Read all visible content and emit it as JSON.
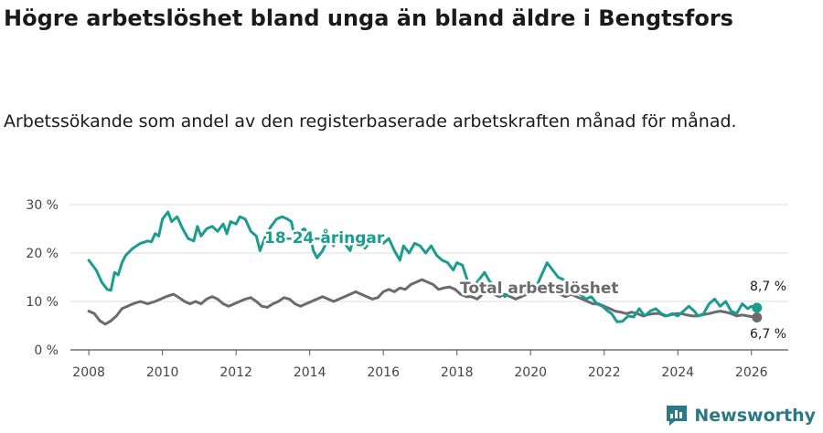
{
  "title": "Högre arbetslöshet bland unga än bland äldre i Bengtsfors",
  "subtitle": "Arbetssökande som andel av den registerbaserade arbetskraften månad för månad.",
  "brand": "Newsworthy",
  "colors": {
    "youth": "#1a9c8f",
    "total": "#6b6b6b",
    "brand": "#2a7a86"
  },
  "chart_data": {
    "type": "line",
    "ylim": [
      0,
      30
    ],
    "xlim": [
      2007.5,
      2027.0
    ],
    "y_ticks": [
      {
        "value": 0,
        "label": "0 %"
      },
      {
        "value": 10,
        "label": "10 %"
      },
      {
        "value": 20,
        "label": "20 %"
      },
      {
        "value": 30,
        "label": "30 %"
      }
    ],
    "x_ticks": [
      {
        "value": 2008,
        "label": "2008"
      },
      {
        "value": 2010,
        "label": "2010"
      },
      {
        "value": 2012,
        "label": "2012"
      },
      {
        "value": 2014,
        "label": "2014"
      },
      {
        "value": 2016,
        "label": "2016"
      },
      {
        "value": 2018,
        "label": "2018"
      },
      {
        "value": 2020,
        "label": "2020"
      },
      {
        "value": 2022,
        "label": "2022"
      },
      {
        "value": 2024,
        "label": "2024"
      },
      {
        "value": 2026,
        "label": "2026"
      }
    ],
    "series": [
      {
        "name": "18-24-åringar",
        "color_key": "youth",
        "end_label": "8,7 %",
        "points": [
          [
            2008.0,
            18.5
          ],
          [
            2008.2,
            16.5
          ],
          [
            2008.35,
            14.0
          ],
          [
            2008.5,
            12.5
          ],
          [
            2008.6,
            12.3
          ],
          [
            2008.7,
            16.0
          ],
          [
            2008.8,
            15.5
          ],
          [
            2008.9,
            18.0
          ],
          [
            2009.0,
            19.5
          ],
          [
            2009.2,
            21.0
          ],
          [
            2009.4,
            22.0
          ],
          [
            2009.6,
            22.5
          ],
          [
            2009.7,
            22.3
          ],
          [
            2009.8,
            24.0
          ],
          [
            2009.9,
            23.5
          ],
          [
            2010.0,
            27.0
          ],
          [
            2010.15,
            28.5
          ],
          [
            2010.25,
            26.5
          ],
          [
            2010.4,
            27.5
          ],
          [
            2010.55,
            25.0
          ],
          [
            2010.7,
            23.0
          ],
          [
            2010.85,
            22.5
          ],
          [
            2010.95,
            25.5
          ],
          [
            2011.05,
            23.5
          ],
          [
            2011.2,
            25.0
          ],
          [
            2011.35,
            25.5
          ],
          [
            2011.5,
            24.5
          ],
          [
            2011.65,
            26.0
          ],
          [
            2011.75,
            24.0
          ],
          [
            2011.85,
            26.5
          ],
          [
            2012.0,
            26.0
          ],
          [
            2012.1,
            27.5
          ],
          [
            2012.25,
            27.0
          ],
          [
            2012.4,
            24.5
          ],
          [
            2012.55,
            23.5
          ],
          [
            2012.65,
            20.5
          ],
          [
            2012.8,
            23.5
          ],
          [
            2012.95,
            25.5
          ],
          [
            2013.1,
            27.0
          ],
          [
            2013.25,
            27.5
          ],
          [
            2013.4,
            27.0
          ],
          [
            2013.5,
            26.5
          ],
          [
            2013.6,
            23.0
          ],
          [
            2013.75,
            24.5
          ],
          [
            2013.85,
            25.0
          ],
          [
            2014.0,
            24.0
          ],
          [
            2014.1,
            20.5
          ],
          [
            2014.2,
            19.0
          ],
          [
            2014.35,
            20.5
          ],
          [
            2014.5,
            23.0
          ],
          [
            2014.65,
            21.5
          ],
          [
            2014.8,
            24.0
          ],
          [
            2014.95,
            22.0
          ],
          [
            2015.1,
            20.5
          ],
          [
            2015.2,
            23.5
          ],
          [
            2015.35,
            23.0
          ],
          [
            2015.5,
            21.0
          ],
          [
            2015.65,
            22.5
          ],
          [
            2015.8,
            23.5
          ],
          [
            2016.0,
            22.0
          ],
          [
            2016.15,
            23.0
          ],
          [
            2016.3,
            20.5
          ],
          [
            2016.45,
            18.5
          ],
          [
            2016.55,
            21.5
          ],
          [
            2016.7,
            20.0
          ],
          [
            2016.85,
            22.0
          ],
          [
            2017.0,
            21.5
          ],
          [
            2017.15,
            20.0
          ],
          [
            2017.3,
            21.5
          ],
          [
            2017.45,
            19.5
          ],
          [
            2017.6,
            18.5
          ],
          [
            2017.75,
            18.0
          ],
          [
            2017.9,
            16.5
          ],
          [
            2018.0,
            18.0
          ],
          [
            2018.15,
            17.5
          ],
          [
            2018.3,
            14.0
          ],
          [
            2018.45,
            13.0
          ],
          [
            2018.6,
            14.5
          ],
          [
            2018.75,
            16.0
          ],
          [
            2018.9,
            14.0
          ],
          [
            2019.0,
            13.5
          ],
          [
            2019.15,
            12.5
          ],
          [
            2019.3,
            11.0
          ],
          [
            2019.45,
            12.0
          ],
          [
            2019.6,
            13.5
          ],
          [
            2019.75,
            12.5
          ],
          [
            2019.9,
            11.5
          ],
          [
            2020.1,
            12.0
          ],
          [
            2020.3,
            15.5
          ],
          [
            2020.45,
            18.0
          ],
          [
            2020.6,
            16.5
          ],
          [
            2020.75,
            15.0
          ],
          [
            2020.9,
            14.5
          ],
          [
            2021.05,
            13.0
          ],
          [
            2021.2,
            12.0
          ],
          [
            2021.35,
            11.5
          ],
          [
            2021.5,
            10.5
          ],
          [
            2021.65,
            11.0
          ],
          [
            2021.8,
            9.5
          ],
          [
            2021.95,
            9.0
          ],
          [
            2022.1,
            8.0
          ],
          [
            2022.2,
            7.5
          ],
          [
            2022.35,
            5.8
          ],
          [
            2022.5,
            5.9
          ],
          [
            2022.65,
            7.0
          ],
          [
            2022.8,
            6.8
          ],
          [
            2022.95,
            8.5
          ],
          [
            2023.1,
            7.0
          ],
          [
            2023.25,
            8.0
          ],
          [
            2023.4,
            8.5
          ],
          [
            2023.55,
            7.5
          ],
          [
            2023.7,
            7.0
          ],
          [
            2023.85,
            7.5
          ],
          [
            2024.0,
            7.0
          ],
          [
            2024.15,
            8.0
          ],
          [
            2024.3,
            9.0
          ],
          [
            2024.45,
            8.0
          ],
          [
            2024.55,
            7.0
          ],
          [
            2024.7,
            7.5
          ],
          [
            2024.85,
            9.5
          ],
          [
            2025.0,
            10.5
          ],
          [
            2025.15,
            9.0
          ],
          [
            2025.3,
            10.0
          ],
          [
            2025.45,
            8.0
          ],
          [
            2025.6,
            7.5
          ],
          [
            2025.75,
            9.5
          ],
          [
            2025.9,
            8.5
          ],
          [
            2026.0,
            9.0
          ],
          [
            2026.15,
            8.7
          ]
        ]
      },
      {
        "name": "Total arbetslöshet",
        "color_key": "total",
        "end_label": "6,7 %",
        "points": [
          [
            2008.0,
            8.0
          ],
          [
            2008.15,
            7.5
          ],
          [
            2008.3,
            6.0
          ],
          [
            2008.45,
            5.3
          ],
          [
            2008.6,
            6.0
          ],
          [
            2008.75,
            7.0
          ],
          [
            2008.9,
            8.5
          ],
          [
            2009.05,
            9.0
          ],
          [
            2009.2,
            9.5
          ],
          [
            2009.4,
            10.0
          ],
          [
            2009.6,
            9.5
          ],
          [
            2009.8,
            10.0
          ],
          [
            2009.95,
            10.5
          ],
          [
            2010.1,
            11.0
          ],
          [
            2010.3,
            11.5
          ],
          [
            2010.45,
            10.8
          ],
          [
            2010.6,
            10.0
          ],
          [
            2010.75,
            9.5
          ],
          [
            2010.9,
            10.0
          ],
          [
            2011.05,
            9.5
          ],
          [
            2011.2,
            10.5
          ],
          [
            2011.35,
            11.0
          ],
          [
            2011.5,
            10.5
          ],
          [
            2011.65,
            9.5
          ],
          [
            2011.8,
            9.0
          ],
          [
            2011.95,
            9.5
          ],
          [
            2012.1,
            10.0
          ],
          [
            2012.25,
            10.5
          ],
          [
            2012.4,
            10.8
          ],
          [
            2012.55,
            10.0
          ],
          [
            2012.7,
            9.0
          ],
          [
            2012.85,
            8.8
          ],
          [
            2013.0,
            9.5
          ],
          [
            2013.15,
            10.0
          ],
          [
            2013.3,
            10.8
          ],
          [
            2013.45,
            10.5
          ],
          [
            2013.6,
            9.5
          ],
          [
            2013.75,
            9.0
          ],
          [
            2013.9,
            9.5
          ],
          [
            2014.05,
            10.0
          ],
          [
            2014.2,
            10.5
          ],
          [
            2014.35,
            11.0
          ],
          [
            2014.5,
            10.5
          ],
          [
            2014.65,
            10.0
          ],
          [
            2014.8,
            10.5
          ],
          [
            2014.95,
            11.0
          ],
          [
            2015.1,
            11.5
          ],
          [
            2015.25,
            12.0
          ],
          [
            2015.4,
            11.5
          ],
          [
            2015.55,
            11.0
          ],
          [
            2015.7,
            10.5
          ],
          [
            2015.85,
            10.8
          ],
          [
            2016.0,
            12.0
          ],
          [
            2016.15,
            12.5
          ],
          [
            2016.3,
            12.0
          ],
          [
            2016.45,
            12.8
          ],
          [
            2016.6,
            12.5
          ],
          [
            2016.75,
            13.5
          ],
          [
            2016.9,
            14.0
          ],
          [
            2017.05,
            14.5
          ],
          [
            2017.2,
            14.0
          ],
          [
            2017.35,
            13.5
          ],
          [
            2017.5,
            12.5
          ],
          [
            2017.65,
            12.8
          ],
          [
            2017.8,
            13.0
          ],
          [
            2017.95,
            12.5
          ],
          [
            2018.1,
            11.5
          ],
          [
            2018.25,
            11.0
          ],
          [
            2018.4,
            11.0
          ],
          [
            2018.55,
            10.5
          ],
          [
            2018.7,
            11.5
          ],
          [
            2018.85,
            12.0
          ],
          [
            2019.0,
            11.5
          ],
          [
            2019.15,
            11.0
          ],
          [
            2019.3,
            11.5
          ],
          [
            2019.45,
            11.0
          ],
          [
            2019.6,
            10.5
          ],
          [
            2019.75,
            11.0
          ],
          [
            2019.9,
            11.5
          ],
          [
            2020.05,
            12.0
          ],
          [
            2020.2,
            12.5
          ],
          [
            2020.35,
            13.0
          ],
          [
            2020.5,
            12.5
          ],
          [
            2020.65,
            12.0
          ],
          [
            2020.8,
            11.5
          ],
          [
            2020.95,
            11.0
          ],
          [
            2021.1,
            11.5
          ],
          [
            2021.25,
            11.0
          ],
          [
            2021.4,
            10.5
          ],
          [
            2021.55,
            10.0
          ],
          [
            2021.7,
            9.5
          ],
          [
            2021.85,
            9.5
          ],
          [
            2022.0,
            9.0
          ],
          [
            2022.15,
            8.5
          ],
          [
            2022.3,
            8.0
          ],
          [
            2022.45,
            7.8
          ],
          [
            2022.6,
            7.5
          ],
          [
            2022.75,
            7.8
          ],
          [
            2022.9,
            7.5
          ],
          [
            2023.05,
            7.0
          ],
          [
            2023.2,
            7.3
          ],
          [
            2023.35,
            7.5
          ],
          [
            2023.5,
            7.5
          ],
          [
            2023.65,
            7.0
          ],
          [
            2023.8,
            7.2
          ],
          [
            2023.95,
            7.5
          ],
          [
            2024.1,
            7.5
          ],
          [
            2024.25,
            7.2
          ],
          [
            2024.4,
            7.0
          ],
          [
            2024.55,
            7.0
          ],
          [
            2024.7,
            7.3
          ],
          [
            2024.85,
            7.5
          ],
          [
            2025.0,
            7.8
          ],
          [
            2025.15,
            8.0
          ],
          [
            2025.3,
            7.8
          ],
          [
            2025.45,
            7.5
          ],
          [
            2025.6,
            7.0
          ],
          [
            2025.75,
            7.2
          ],
          [
            2025.9,
            7.0
          ],
          [
            2026.05,
            6.8
          ],
          [
            2026.15,
            6.7
          ]
        ]
      }
    ]
  }
}
